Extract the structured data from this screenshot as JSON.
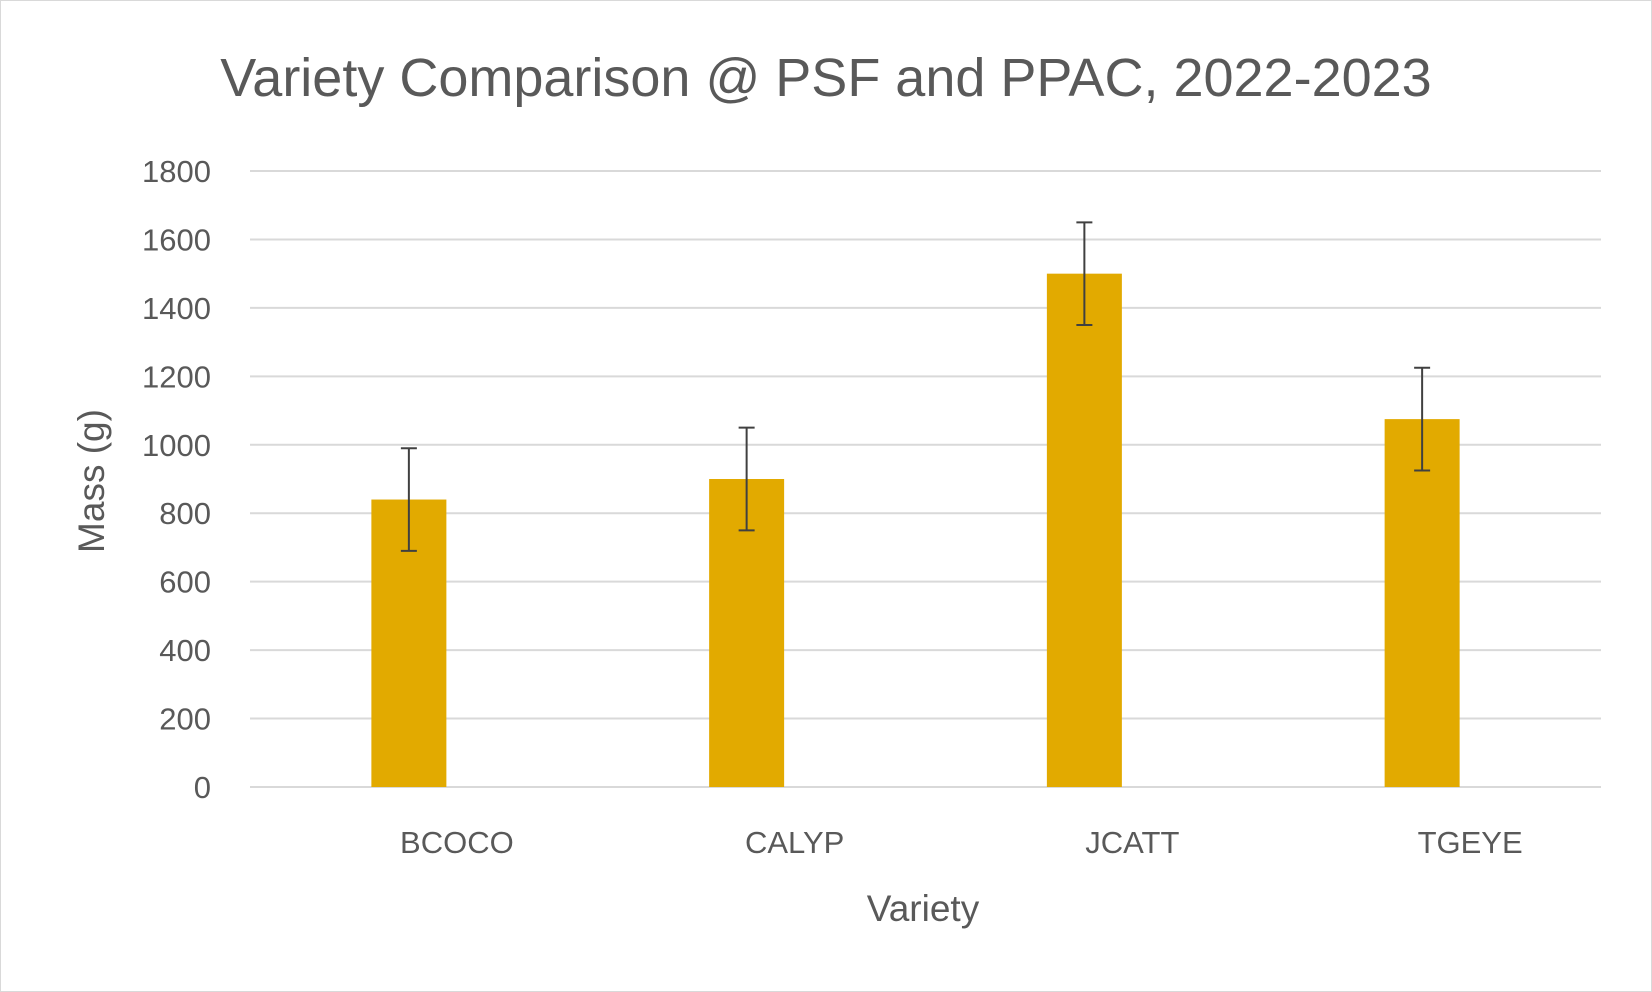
{
  "chart_data": {
    "type": "bar",
    "title": "Variety Comparison @ PSF and PPAC, 2022-2023",
    "xlabel": "Variety",
    "ylabel": "Mass (g)",
    "categories": [
      "BCOCO",
      "CALYP",
      "JCATT",
      "TGEYE"
    ],
    "values": [
      840,
      900,
      1500,
      1075
    ],
    "error": [
      150,
      150,
      150,
      150
    ],
    "ylim": [
      0,
      1800
    ],
    "yticks": [
      0,
      200,
      400,
      600,
      800,
      1000,
      1200,
      1400,
      1600,
      1800
    ],
    "grid": true,
    "legend": "none",
    "bar_color": "#E2AA00",
    "error_bar_color": "#404040"
  }
}
